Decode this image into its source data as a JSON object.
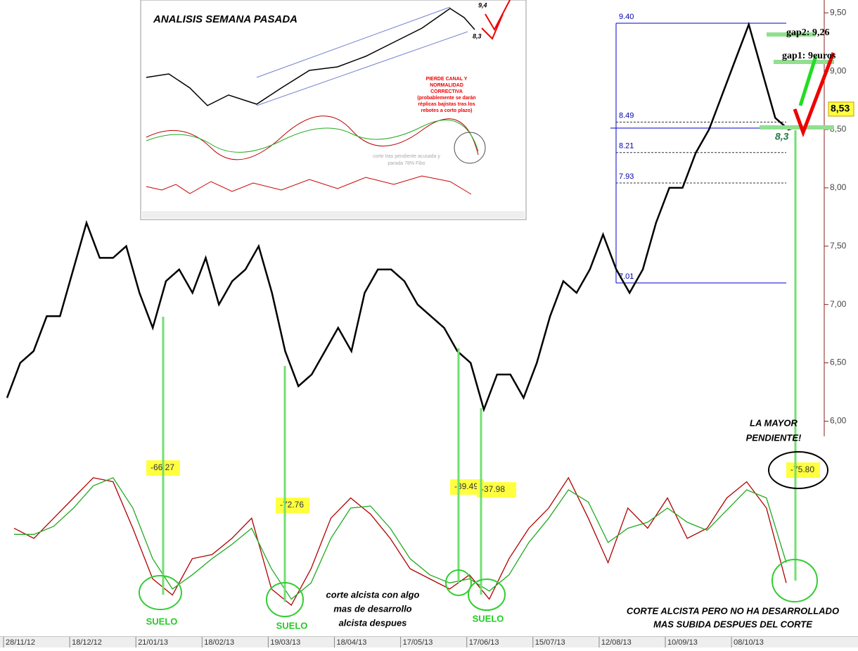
{
  "chart_data": [
    {
      "type": "line",
      "name": "price",
      "values": [
        6.2,
        6.5,
        6.6,
        6.9,
        6.9,
        7.3,
        7.7,
        7.4,
        7.4,
        7.5,
        7.1,
        6.8,
        7.2,
        7.3,
        7.1,
        7.4,
        7.0,
        7.2,
        7.3,
        7.5,
        7.1,
        6.6,
        6.3,
        6.4,
        6.6,
        6.8,
        6.6,
        7.1,
        7.3,
        7.3,
        7.2,
        7.0,
        6.9,
        6.8,
        6.6,
        6.5,
        6.1,
        6.4,
        6.4,
        6.2,
        6.5,
        6.9,
        7.2,
        7.1,
        7.3,
        7.6,
        7.3,
        7.1,
        7.3,
        7.7,
        8.0,
        8.0,
        8.3,
        8.5,
        8.8,
        9.1,
        9.4,
        9.0,
        8.6,
        8.5,
        8.53
      ],
      "color": "#000000",
      "ylim": [
        5.87,
        9.61
      ],
      "yticks": [
        {
          "value": 9.5,
          "label": "9,50"
        },
        {
          "value": 9,
          "label": "9,00"
        },
        {
          "value": 8.5,
          "label": "8,50"
        },
        {
          "value": 8,
          "label": "8,00"
        },
        {
          "value": 7.5,
          "label": "7,50"
        },
        {
          "value": 7,
          "label": "7,00"
        },
        {
          "value": 6.5,
          "label": "6,50"
        },
        {
          "value": 6,
          "label": "6,00"
        }
      ],
      "fib_levels": [
        {
          "value": 9.4,
          "label": "9.40"
        },
        8.49,
        8.21,
        7.93,
        7.01
      ]
    },
    {
      "type": "line",
      "name": "oscillator",
      "series": [
        {
          "name": "fast",
          "color": "#b00000",
          "values": [
            -55,
            -60,
            -50,
            -40,
            -30,
            -32,
            -55,
            -80,
            -88,
            -70,
            -68,
            -60,
            -50,
            -85,
            -93,
            -75,
            -50,
            -40,
            -48,
            -60,
            -75,
            -80,
            -85,
            -78,
            -90,
            -70,
            -55,
            -45,
            -30,
            -50,
            -72,
            -45,
            -55,
            -40,
            -60,
            -55,
            -40,
            -32,
            -45,
            -82
          ]
        },
        {
          "name": "slow",
          "color": "#22aa22",
          "values": [
            -58,
            -58,
            -54,
            -45,
            -34,
            -30,
            -45,
            -70,
            -85,
            -78,
            -70,
            -63,
            -55,
            -75,
            -90,
            -82,
            -60,
            -45,
            -44,
            -55,
            -70,
            -78,
            -82,
            -80,
            -86,
            -78,
            -62,
            -50,
            -36,
            -42,
            -62,
            -55,
            -52,
            -45,
            -52,
            -56,
            -46,
            -36,
            -40,
            -72
          ]
        }
      ],
      "ylim": [
        -100,
        -20
      ],
      "level_labels": [
        -66.27,
        -72.76,
        -39.49,
        -37.98,
        {
          "value": -75.8,
          "label": "-75.80"
        }
      ]
    }
  ],
  "x_axis_labels": [
    "28/11/12",
    "18/12/12",
    "21/01/13",
    "18/02/13",
    "19/03/13",
    "18/04/13",
    "17/05/13",
    "17/06/13",
    "15/07/13",
    "12/08/13",
    "10/09/13",
    "08/10/13"
  ],
  "inset": {
    "title": "ANALISIS SEMANA PASADA",
    "high": "9,4",
    "low": "8,3",
    "note": [
      "PIERDE CANAL Y",
      "NORMALIDAD",
      "CORRECTIVA",
      "(probablemente se darán",
      "réplicas bajistas tras los",
      "rebotes a corto plazo)"
    ],
    "oscillator_note": [
      "corte tras pendiente acusada y",
      "parada 78% Fibo"
    ]
  },
  "annotations": {
    "gap2": "gap2: 9,26",
    "gap1": "gap1: 9euros",
    "last_price": "8,53",
    "support": "8,3",
    "steepest": [
      "LA MAYOR",
      "PENDIENTE!"
    ],
    "cross_note": [
      "CORTE ALCISTA PERO NO HA DESARROLLADO",
      "MAS SUBIDA DESPUES DEL CORTE"
    ],
    "floor": [
      "SUELO",
      "SUELO",
      "SUELO"
    ],
    "cross_mid": [
      "corte alcista con algo",
      "mas de desarrollo",
      "alcista despues"
    ]
  }
}
